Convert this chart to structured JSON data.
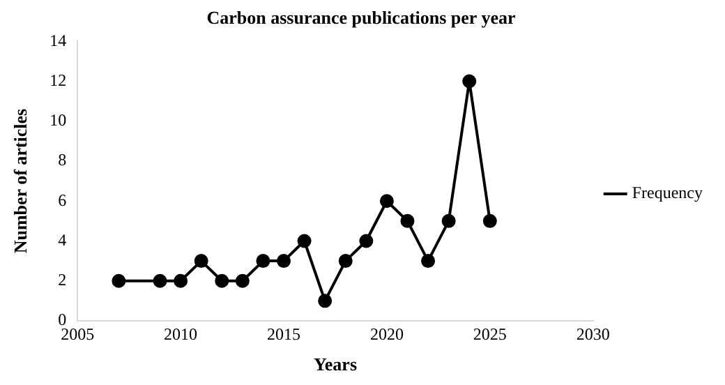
{
  "chart_data": {
    "type": "line",
    "title": "Carbon assurance publications per year",
    "xlabel": "Years",
    "ylabel": "Number of articles",
    "x": [
      2007,
      2009,
      2010,
      2011,
      2012,
      2013,
      2014,
      2015,
      2016,
      2017,
      2018,
      2019,
      2020,
      2021,
      2022,
      2023,
      2024,
      2025
    ],
    "series": [
      {
        "name": "Frequency",
        "color": "#000000",
        "values": [
          2,
          2,
          2,
          3,
          2,
          2,
          3,
          3,
          4,
          1,
          3,
          4,
          6,
          5,
          3,
          5,
          12,
          5
        ]
      }
    ],
    "xlim": [
      2005,
      2030
    ],
    "xticks": [
      2005,
      2010,
      2015,
      2020,
      2025,
      2030
    ],
    "ylim": [
      0,
      14
    ],
    "yticks": [
      0,
      2,
      4,
      6,
      8,
      10,
      12,
      14
    ],
    "grid": false,
    "legend": "right",
    "marker": "circle",
    "line_style": "solid"
  }
}
